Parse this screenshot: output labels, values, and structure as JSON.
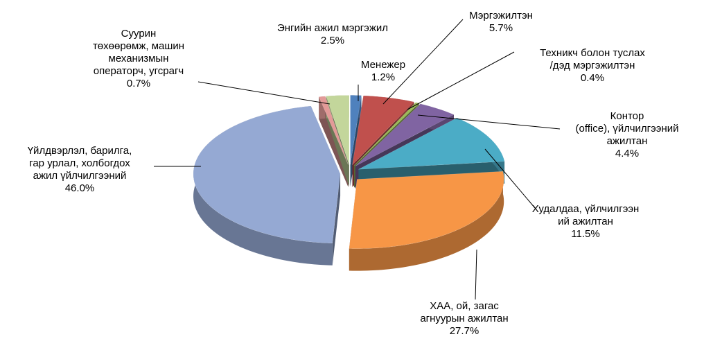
{
  "chart_data": {
    "type": "pie",
    "categories": [
      "Менежер",
      "Мэргэжилтэн",
      "Техникч болон туслах\n/дэд мэргэжилтэн",
      "Контор\n(office), үйлчилгээний\nажилтан",
      "Худалдаа, үйлчилгээн\nий ажилтан",
      "ХАА, ой, загас\nагнуурын ажилтан",
      "Үйлдвэрлэл, барилга,\nгар урлал, холбогдох\nажил үйлчилгээний",
      "Суурин\nтөхөөрөмж, машин\nмеханизмын\nоператорч, угсрагч",
      "Энгийн ажил мэргэжил"
    ],
    "values": [
      1.2,
      5.7,
      0.4,
      4.4,
      11.5,
      27.7,
      46.0,
      0.7,
      2.5
    ],
    "value_labels": [
      "1.2%",
      "5.7%",
      "0.4%",
      "4.4%",
      "11.5%",
      "27.7%",
      "46.0%",
      "0.7%",
      "2.5%"
    ],
    "colors": [
      "#4f81bd",
      "#c0504d",
      "#9bbb59",
      "#8064a2",
      "#4bacc6",
      "#f79646",
      "#95a9d3",
      "#e39a98",
      "#c3d69b"
    ]
  }
}
